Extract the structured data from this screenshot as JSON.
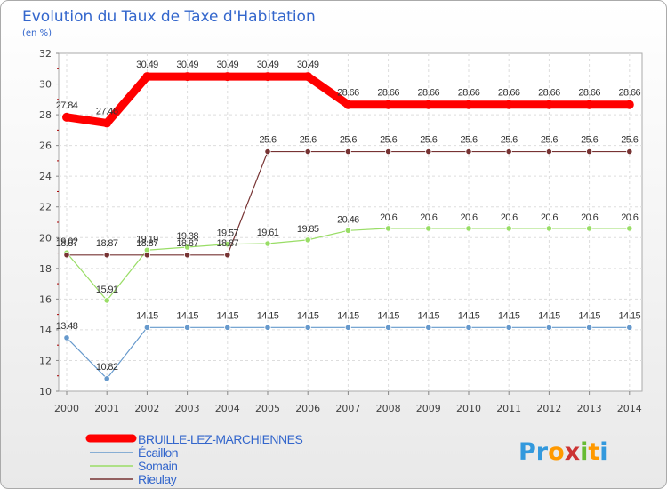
{
  "chart_data": {
    "type": "line",
    "title": "Evolution du Taux de Taxe d'Habitation",
    "subtitle": "(en %)",
    "x": [
      "2000",
      "2001",
      "2002",
      "2003",
      "2004",
      "2005",
      "2006",
      "2007",
      "2008",
      "2009",
      "2010",
      "2011",
      "2012",
      "2013",
      "2014"
    ],
    "ylim": [
      10,
      32
    ],
    "yticks": [
      "10",
      "12",
      "14",
      "16",
      "18",
      "20",
      "22",
      "24",
      "26",
      "28",
      "30",
      "32"
    ],
    "grid": true,
    "legend_position": "bottom-left",
    "series": [
      {
        "name": "BRUILLE-LEZ-MARCHIENNES",
        "color": "#ff0000",
        "values": [
          27.84,
          27.46,
          30.49,
          30.49,
          30.49,
          30.49,
          30.49,
          28.66,
          28.66,
          28.66,
          28.66,
          28.66,
          28.66,
          28.66,
          28.66
        ],
        "labels": [
          "27.84",
          "27.46",
          "30.49",
          "30.49",
          "30.49",
          "30.49",
          "30.49",
          "28.66",
          "28.66",
          "28.66",
          "28.66",
          "28.66",
          "28.66",
          "28.66",
          "28.66"
        ]
      },
      {
        "name": "Écaillon",
        "color": "#6699cc",
        "values": [
          13.48,
          10.82,
          14.15,
          14.15,
          14.15,
          14.15,
          14.15,
          14.15,
          14.15,
          14.15,
          14.15,
          14.15,
          14.15,
          14.15,
          14.15
        ],
        "labels": [
          "13.48",
          "10.82",
          "14.15",
          "14.15",
          "14.15",
          "14.15",
          "14.15",
          "14.15",
          "14.15",
          "14.15",
          "14.15",
          "14.15",
          "14.15",
          "14.15",
          "14.15"
        ]
      },
      {
        "name": "Somain",
        "color": "#99dd66",
        "values": [
          19.02,
          15.91,
          19.19,
          19.38,
          19.57,
          19.61,
          19.85,
          20.46,
          20.6,
          20.6,
          20.6,
          20.6,
          20.6,
          20.6,
          20.6
        ],
        "labels": [
          "19.02",
          "15.91",
          "19.19",
          "19.38",
          "19.57",
          "19.61",
          "19.85",
          "20.46",
          "20.6",
          "20.6",
          "20.6",
          "20.6",
          "20.6",
          "20.6",
          "20.6"
        ]
      },
      {
        "name": "Rieulay",
        "color": "#773333",
        "values": [
          18.87,
          18.87,
          18.87,
          18.87,
          18.87,
          25.6,
          25.6,
          25.6,
          25.6,
          25.6,
          25.6,
          25.6,
          25.6,
          25.6,
          25.6
        ],
        "labels": [
          "18.87",
          "18.87",
          "18.87",
          "18.87",
          "18.87",
          "25.6",
          "25.6",
          "25.6",
          "25.6",
          "25.6",
          "25.6",
          "25.6",
          "25.6",
          "25.6",
          "25.6"
        ]
      }
    ]
  },
  "branding": {
    "logo_text": "Proxiti",
    "logo_letters": [
      "P",
      "r",
      "o",
      "x",
      "i",
      "t",
      "i"
    ],
    "logo_colors": [
      "#3399dd",
      "#3399dd",
      "#ff9900",
      "#cc3333",
      "#66bb33",
      "#ff9900",
      "#3399dd"
    ]
  }
}
